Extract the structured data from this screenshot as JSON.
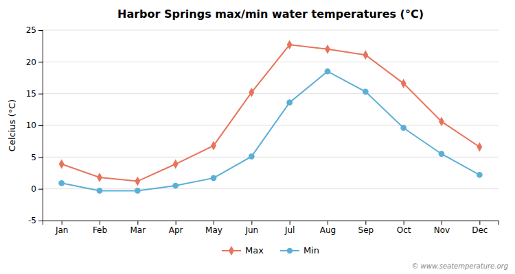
{
  "chart_data": {
    "type": "line",
    "title": "Harbor Springs max/min water temperatures (°C)",
    "ylabel": "Celcius (°C)",
    "categories": [
      "Jan",
      "Feb",
      "Mar",
      "Apr",
      "May",
      "Jun",
      "Jul",
      "Aug",
      "Sep",
      "Oct",
      "Nov",
      "Dec"
    ],
    "series": [
      {
        "name": "Max",
        "color": "#e8735a",
        "marker": "diamond",
        "values": [
          3.9,
          1.8,
          1.2,
          3.9,
          6.8,
          15.2,
          22.7,
          22.0,
          21.1,
          16.6,
          10.6,
          6.6
        ]
      },
      {
        "name": "Min",
        "color": "#5bafd6",
        "marker": "circle",
        "values": [
          0.9,
          -0.3,
          -0.3,
          0.5,
          1.7,
          5.1,
          13.6,
          18.5,
          15.3,
          9.6,
          5.5,
          2.2
        ]
      }
    ],
    "ylim": [
      -5,
      25
    ],
    "yticks": [
      -5,
      0,
      5,
      10,
      15,
      20,
      25
    ],
    "grid": true,
    "legend": "bottom",
    "annotations": [
      "© www.seatemperature.org"
    ]
  }
}
